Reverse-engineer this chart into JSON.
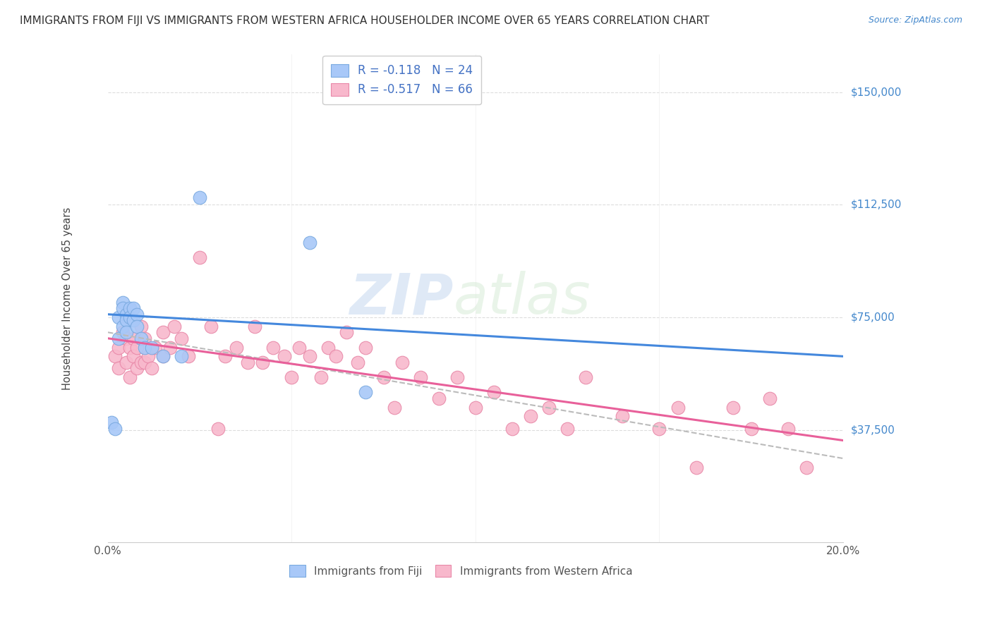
{
  "title": "IMMIGRANTS FROM FIJI VS IMMIGRANTS FROM WESTERN AFRICA HOUSEHOLDER INCOME OVER 65 YEARS CORRELATION CHART",
  "source": "Source: ZipAtlas.com",
  "ylabel": "Householder Income Over 65 years",
  "yticks": [
    37500,
    75000,
    112500,
    150000
  ],
  "ytick_labels": [
    "$37,500",
    "$75,000",
    "$112,500",
    "$150,000"
  ],
  "xlim": [
    0.0,
    0.2
  ],
  "ylim": [
    0,
    162500
  ],
  "fiji_color": "#a8c8f8",
  "fiji_edge_color": "#7aaae0",
  "wa_color": "#f8b8cc",
  "wa_edge_color": "#e888a8",
  "fiji_R": -0.118,
  "fiji_N": 24,
  "wa_R": -0.517,
  "wa_N": 66,
  "fiji_line_color": "#4488dd",
  "wa_line_color": "#e8609a",
  "combined_line_color": "#bbbbbb",
  "background_color": "#ffffff",
  "grid_color": "#dddddd",
  "marker_size": 180,
  "line_width": 2.2,
  "fiji_x": [
    0.001,
    0.002,
    0.003,
    0.003,
    0.004,
    0.004,
    0.004,
    0.005,
    0.005,
    0.005,
    0.006,
    0.006,
    0.007,
    0.007,
    0.008,
    0.008,
    0.009,
    0.01,
    0.012,
    0.015,
    0.02,
    0.025,
    0.055,
    0.07
  ],
  "fiji_y": [
    40000,
    38000,
    75000,
    68000,
    80000,
    78000,
    72000,
    76000,
    74000,
    70000,
    78000,
    75000,
    78000,
    74000,
    76000,
    72000,
    68000,
    65000,
    65000,
    62000,
    62000,
    115000,
    100000,
    50000
  ],
  "wa_x": [
    0.002,
    0.003,
    0.003,
    0.004,
    0.005,
    0.005,
    0.006,
    0.006,
    0.007,
    0.007,
    0.008,
    0.008,
    0.009,
    0.009,
    0.01,
    0.01,
    0.011,
    0.012,
    0.013,
    0.015,
    0.015,
    0.017,
    0.018,
    0.02,
    0.022,
    0.025,
    0.028,
    0.03,
    0.032,
    0.035,
    0.038,
    0.04,
    0.042,
    0.045,
    0.048,
    0.05,
    0.052,
    0.055,
    0.058,
    0.06,
    0.062,
    0.065,
    0.068,
    0.07,
    0.075,
    0.078,
    0.08,
    0.085,
    0.09,
    0.095,
    0.1,
    0.105,
    0.11,
    0.115,
    0.12,
    0.125,
    0.13,
    0.14,
    0.15,
    0.155,
    0.16,
    0.17,
    0.175,
    0.18,
    0.185,
    0.19
  ],
  "wa_y": [
    62000,
    65000,
    58000,
    70000,
    68000,
    60000,
    65000,
    55000,
    68000,
    62000,
    65000,
    58000,
    72000,
    60000,
    68000,
    60000,
    62000,
    58000,
    65000,
    70000,
    62000,
    65000,
    72000,
    68000,
    62000,
    95000,
    72000,
    38000,
    62000,
    65000,
    60000,
    72000,
    60000,
    65000,
    62000,
    55000,
    65000,
    62000,
    55000,
    65000,
    62000,
    70000,
    60000,
    65000,
    55000,
    45000,
    60000,
    55000,
    48000,
    55000,
    45000,
    50000,
    38000,
    42000,
    45000,
    38000,
    55000,
    42000,
    38000,
    45000,
    25000,
    45000,
    38000,
    48000,
    38000,
    25000
  ]
}
